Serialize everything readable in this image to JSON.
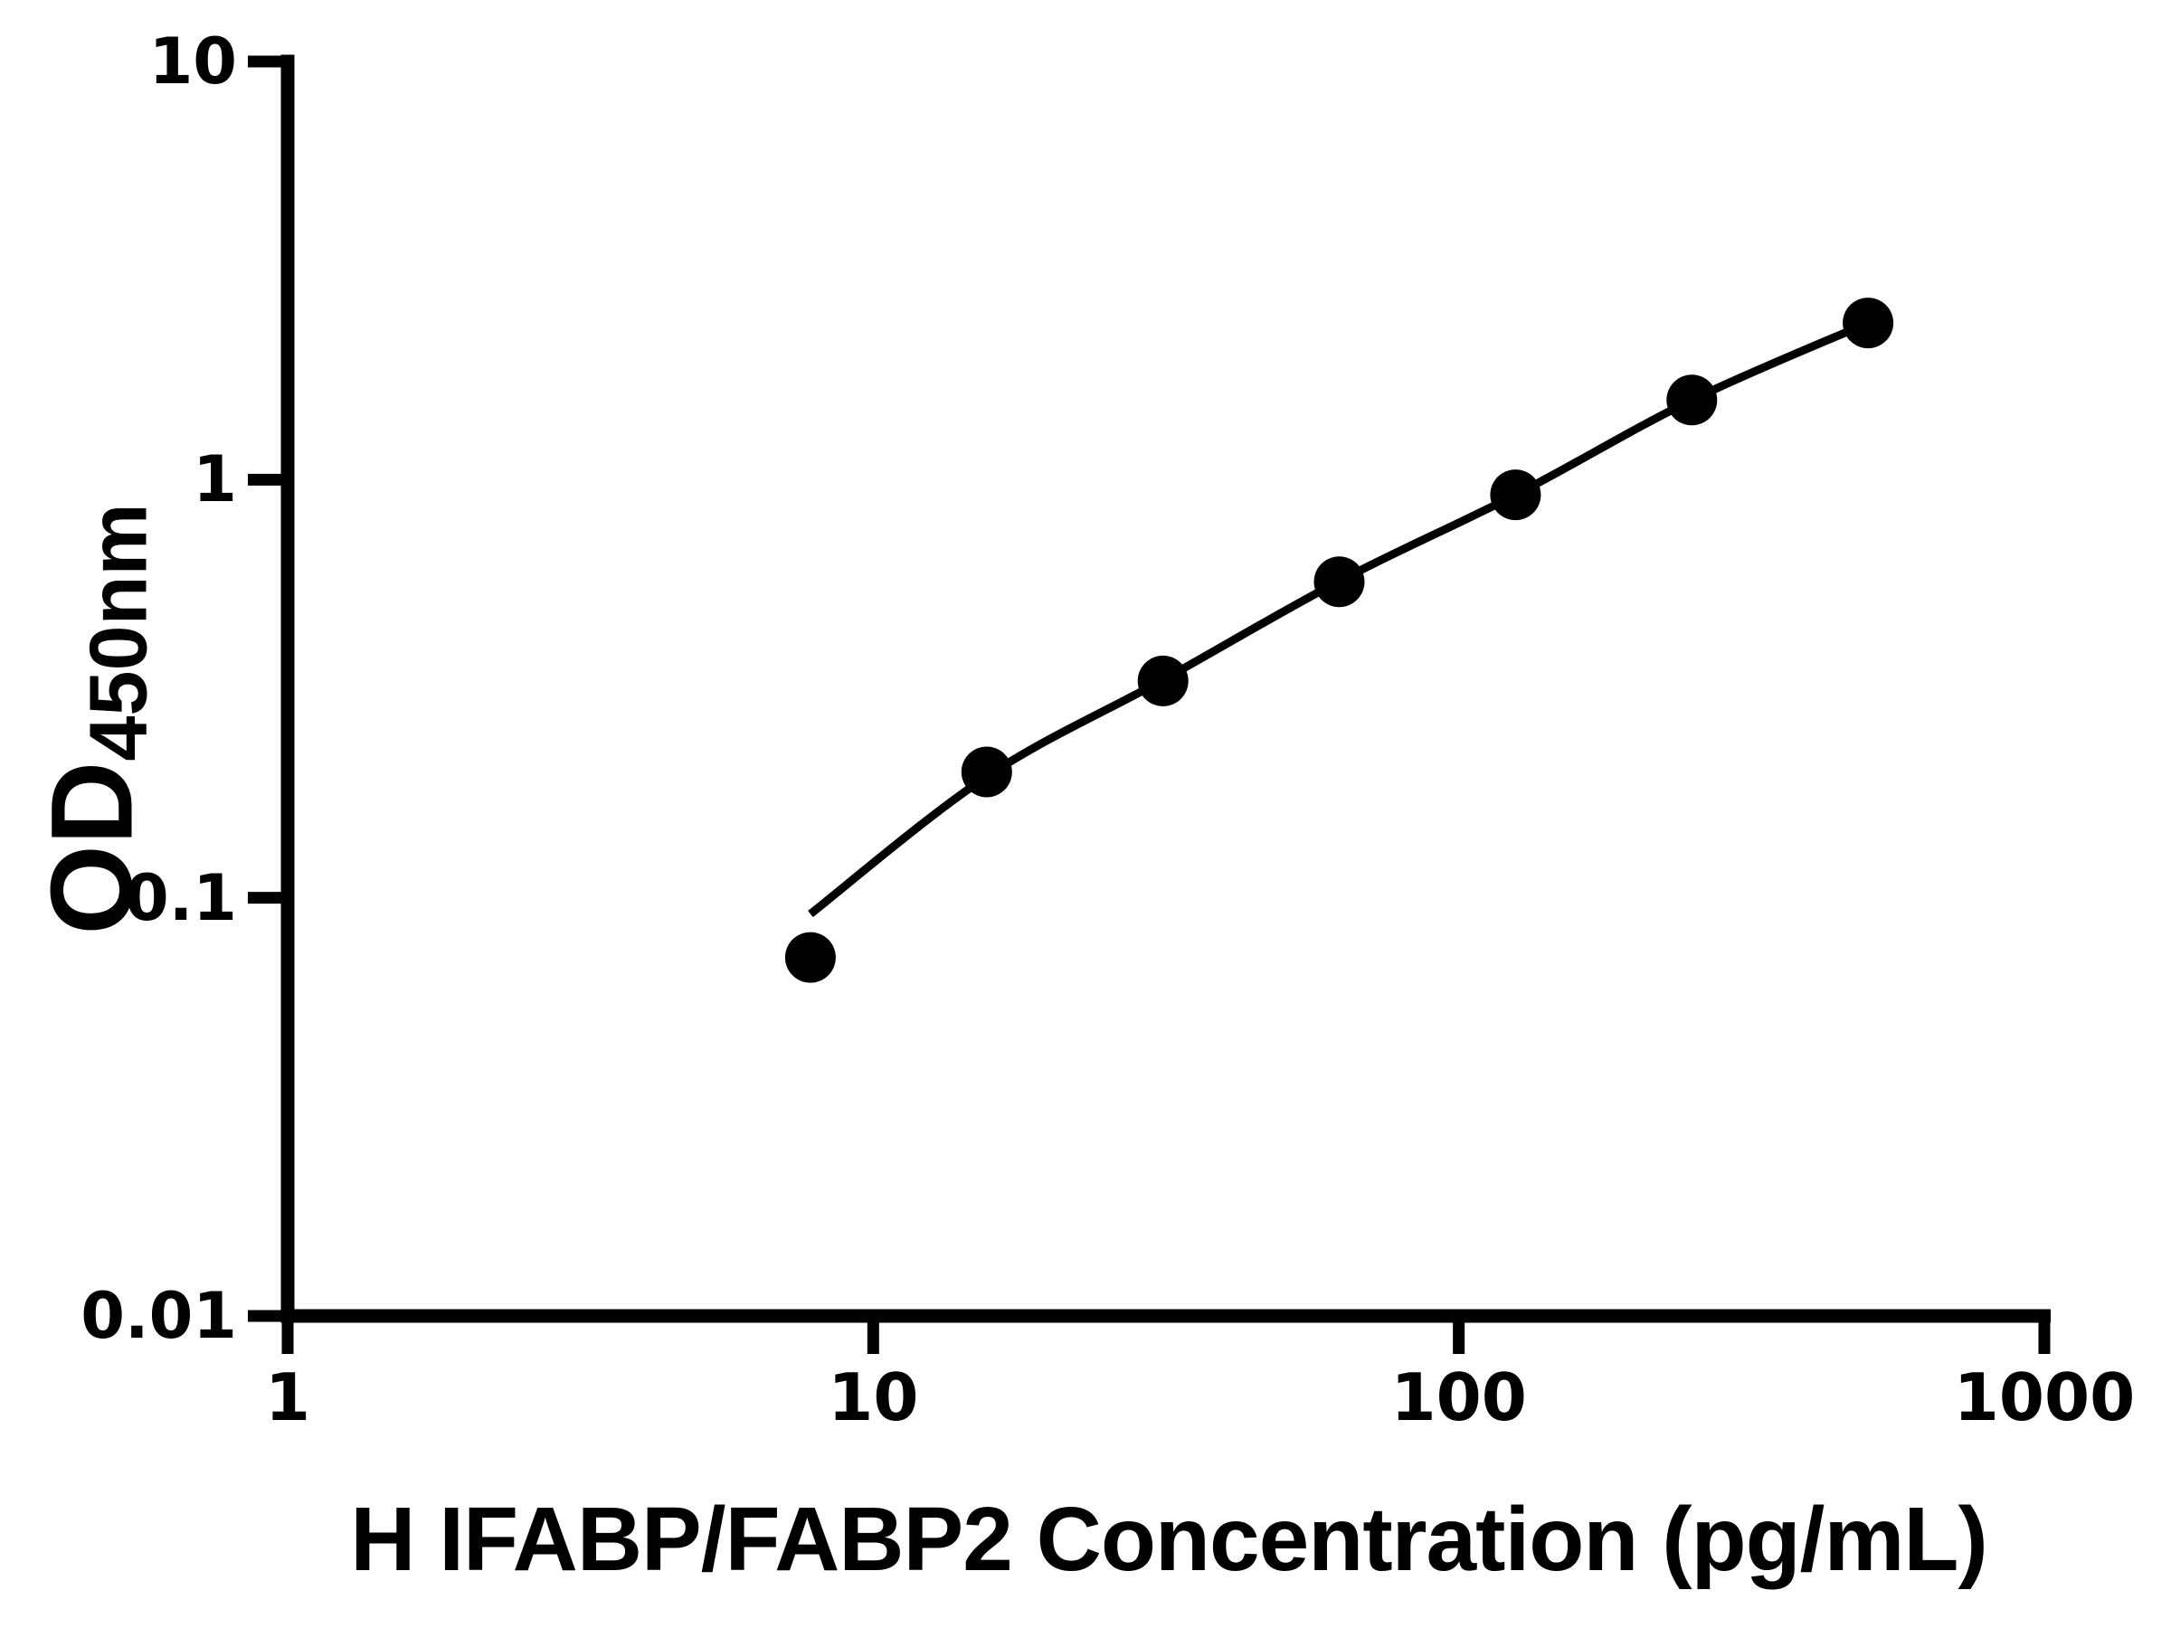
{
  "figure": {
    "background_color": "#ffffff",
    "foreground_color": "#000000"
  },
  "chart_data": {
    "type": "scatter",
    "title": "",
    "xlabel": "H IFABP/FABP2 Concentration (pg/mL)",
    "ylabel_main": "OD",
    "ylabel_sub": "450nm",
    "x_scale": "log",
    "y_scale": "log",
    "xlim": [
      1,
      1000
    ],
    "ylim": [
      0.01,
      10
    ],
    "grid": false,
    "legend": "none",
    "x_ticks": [
      {
        "value": 1,
        "label": "1"
      },
      {
        "value": 10,
        "label": "10"
      },
      {
        "value": 100,
        "label": "100"
      },
      {
        "value": 1000,
        "label": "1000"
      }
    ],
    "y_ticks": [
      {
        "value": 10,
        "label": "10"
      },
      {
        "value": 1,
        "label": "1"
      },
      {
        "value": 0.1,
        "label": "0.1"
      },
      {
        "value": 0.01,
        "label": "0.01"
      }
    ],
    "series": [
      {
        "name": "standard curve",
        "marker": "filled-circle",
        "color": "#000000",
        "points": [
          {
            "x": 7.8125,
            "y": 0.072
          },
          {
            "x": 15.625,
            "y": 0.2
          },
          {
            "x": 31.25,
            "y": 0.33
          },
          {
            "x": 62.5,
            "y": 0.57
          },
          {
            "x": 125,
            "y": 0.92
          },
          {
            "x": 250,
            "y": 1.55
          },
          {
            "x": 500,
            "y": 2.37
          }
        ]
      }
    ],
    "fit_curve": [
      {
        "x": 7.8125,
        "y": 0.0915
      },
      {
        "x": 15.625,
        "y": 0.195
      },
      {
        "x": 31.25,
        "y": 0.332
      },
      {
        "x": 62.5,
        "y": 0.572
      },
      {
        "x": 125,
        "y": 0.92
      },
      {
        "x": 250,
        "y": 1.55
      },
      {
        "x": 500,
        "y": 2.37
      }
    ]
  }
}
